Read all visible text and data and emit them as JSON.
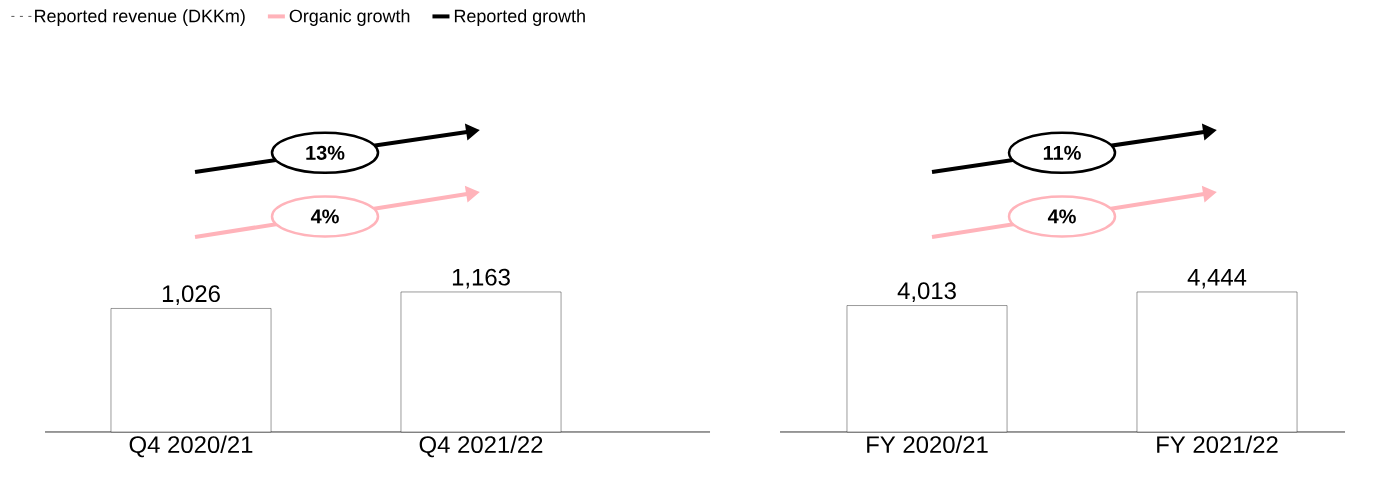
{
  "chart_data": [
    {
      "type": "bar",
      "categories": [
        "Q4 2020/21",
        "Q4 2021/22"
      ],
      "legend": "top left",
      "series": [
        {
          "name": "Reported revenue (DKKm)",
          "color": "#ffffff",
          "values": [
            1026,
            1163
          ],
          "value_labels": [
            "1,026",
            "1,163"
          ]
        },
        {
          "name": "Organic growth",
          "type": "line",
          "color": "#ffb3ba",
          "values": [
            null,
            null
          ]
        },
        {
          "name": "Reported growth",
          "type": "line",
          "color": "#000000",
          "values": [
            null,
            null
          ]
        }
      ],
      "annotations": [
        "13%",
        "4%"
      ]
    },
    {
      "type": "bar",
      "categories": [
        "FY 2020/21",
        "FY 2021/22"
      ],
      "series": [
        {
          "color": "#ffffff",
          "values": [
            4013,
            4444
          ],
          "value_labels": [
            "4,013",
            "4,444"
          ]
        }
      ],
      "annotations": [
        "11%",
        "4%"
      ]
    }
  ]
}
